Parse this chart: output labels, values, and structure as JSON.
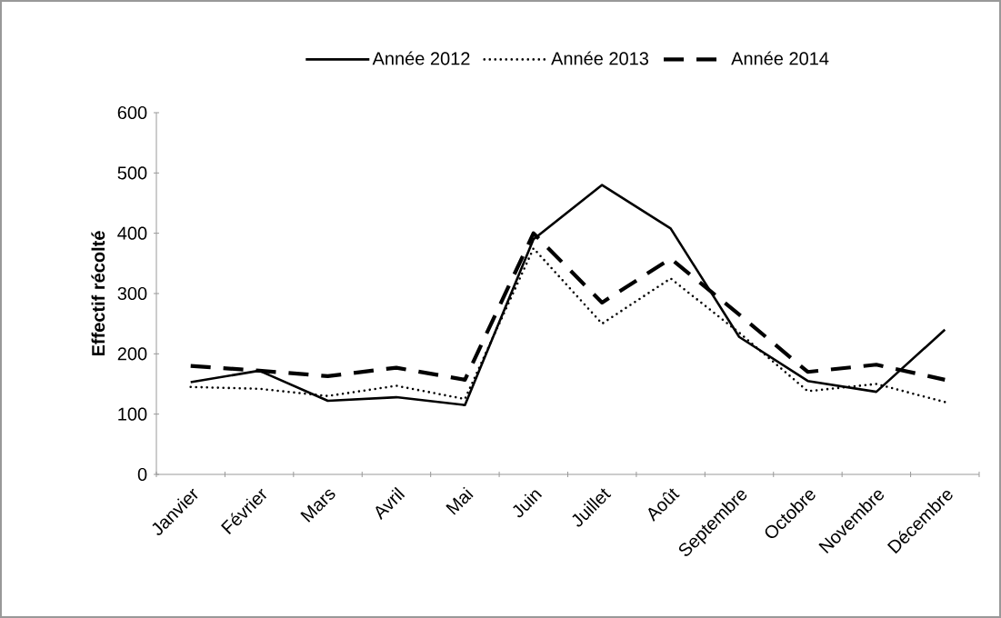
{
  "chart_data": {
    "type": "line",
    "ylabel": "Effectif récolté",
    "categories": [
      "Janvier",
      "Février",
      "Mars",
      "Avril",
      "Mai",
      "Juin",
      "Juillet",
      "Août",
      "Septembre",
      "Octobre",
      "Novembre",
      "Décembre"
    ],
    "series": [
      {
        "name": "Année 2012",
        "color": "#000000",
        "line_style": "solid",
        "values": [
          153,
          172,
          122,
          128,
          115,
          390,
          480,
          408,
          228,
          155,
          137,
          240
        ]
      },
      {
        "name": "Année 2013",
        "color": "#000000",
        "line_style": "dotted",
        "values": [
          145,
          142,
          130,
          147,
          125,
          375,
          250,
          325,
          235,
          138,
          150,
          120
        ]
      },
      {
        "name": "Année 2014",
        "color": "#000000",
        "line_style": "dashed",
        "values": [
          180,
          172,
          163,
          177,
          157,
          400,
          285,
          358,
          265,
          170,
          182,
          157
        ]
      }
    ],
    "ylim": [
      0,
      600
    ],
    "yticks": [
      0,
      100,
      200,
      300,
      400,
      500,
      600
    ],
    "grid": false,
    "legend": "top",
    "marker": "none"
  }
}
